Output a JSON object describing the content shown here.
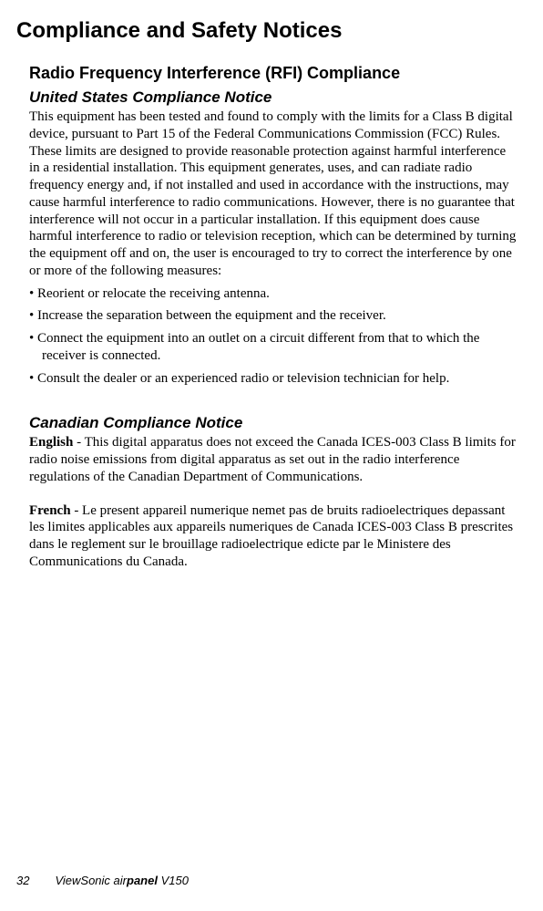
{
  "page": {
    "title": "Compliance and Safety Notices",
    "section_title": "Radio Frequency Interference (RFI) Compliance",
    "us_notice": {
      "heading": "United States Compliance Notice",
      "body": "This equipment has been tested and found to comply with the limits for a Class B digital device, pursuant to Part 15 of the Federal Communications Commission (FCC) Rules. These limits are designed to provide reasonable protection against harmful interference in a residential installation. This equipment generates, uses, and can radiate radio frequency energy and, if not installed and used in accordance with the instructions, may cause harmful interference to radio communications. However, there is no guarantee that interference will not occur in a particular installation. If this equipment does cause harmful interference to radio or television reception, which can be determined by turning the equipment off and on, the user is encouraged to try to correct the interference by one or more of the following measures:",
      "bullets": [
        "Reorient or relocate the receiving antenna.",
        "Increase the separation between the equipment and the receiver.",
        "Connect the equipment into an outlet on a circuit different from that to which the receiver is connected.",
        "Consult the dealer or an experienced radio or television technician for help."
      ]
    },
    "ca_notice": {
      "heading": "Canadian Compliance Notice",
      "english_label": "English",
      "english_body": " - This digital apparatus does not exceed the Canada ICES-003 Class B limits for radio noise emissions from digital apparatus as set out in the radio interference regulations of the Canadian Department of Communications.",
      "french_label": "French",
      "french_body": " - Le present appareil numerique nemet pas de bruits radioelectriques depassant les limites applicables aux appareils numeriques de Canada ICES-003 Class B prescrites dans le reglement sur le brouillage radioelectrique edicte par le Ministere des Communications du Canada."
    },
    "footer": {
      "page_number": "32",
      "brand_prefix": "ViewSonic air",
      "brand_bold": "panel",
      "model": " V150"
    }
  }
}
